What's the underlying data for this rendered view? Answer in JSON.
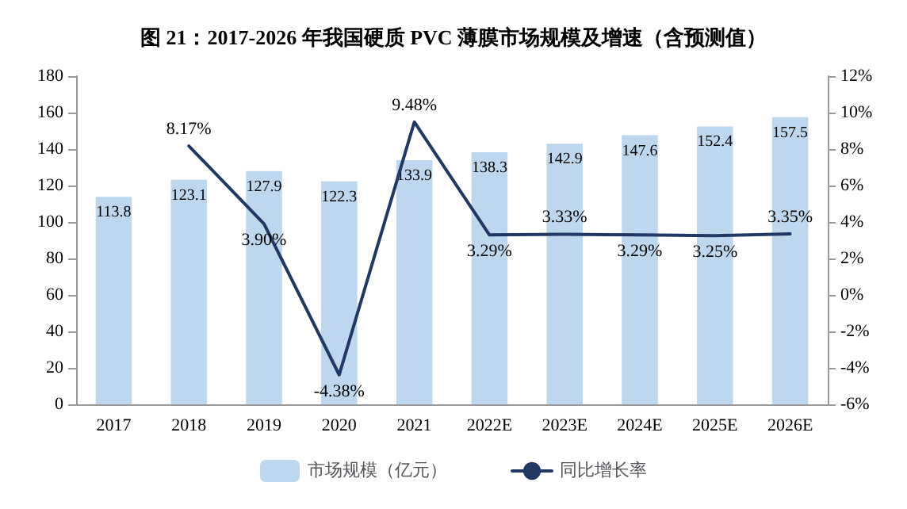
{
  "chart_data": {
    "type": "bar",
    "title": "图 21：2017-2026 年我国硬质 PVC 薄膜市场规模及增速（含预测值）",
    "categories": [
      "2017",
      "2018",
      "2019",
      "2020",
      "2021",
      "2022E",
      "2023E",
      "2024E",
      "2025E",
      "2026E"
    ],
    "series": [
      {
        "name": "市场规模（亿元）",
        "color": "#bdd7ee",
        "values": [
          113.8,
          123.1,
          127.9,
          122.3,
          133.9,
          138.3,
          142.9,
          147.6,
          152.4,
          157.5
        ],
        "value_labels": [
          "113.8",
          "123.1",
          "127.9",
          "122.3",
          "133.9",
          "138.3",
          "142.9",
          "147.6",
          "152.4",
          "157.5"
        ]
      },
      {
        "name": "同比增长率",
        "type": "line",
        "axis": "y2",
        "color": "#1f3864",
        "values": [
          null,
          8.17,
          3.9,
          -4.38,
          9.48,
          3.29,
          3.33,
          3.29,
          3.25,
          3.35
        ],
        "value_labels": [
          null,
          "8.17%",
          "3.90%",
          "-4.38%",
          "9.48%",
          "3.29%",
          "3.33%",
          "3.29%",
          "3.25%",
          "3.35%"
        ]
      }
    ],
    "ylim": [
      0,
      180
    ],
    "yticks": [
      0,
      20,
      40,
      60,
      80,
      100,
      120,
      140,
      160,
      180
    ],
    "y2lim": [
      -6,
      12
    ],
    "y2ticks": [
      {
        "value": -6,
        "label": "-6%"
      },
      {
        "value": -4,
        "label": "-4%"
      },
      {
        "value": -2,
        "label": "-2%"
      },
      {
        "value": 0,
        "label": "0%"
      },
      {
        "value": 2,
        "label": "2%"
      },
      {
        "value": 4,
        "label": "4%"
      },
      {
        "value": 6,
        "label": "6%"
      },
      {
        "value": 8,
        "label": "8%"
      },
      {
        "value": 10,
        "label": "10%"
      },
      {
        "value": 12,
        "label": "12%"
      }
    ],
    "legend": "bottom",
    "marker": "none",
    "line_style": "solid"
  }
}
